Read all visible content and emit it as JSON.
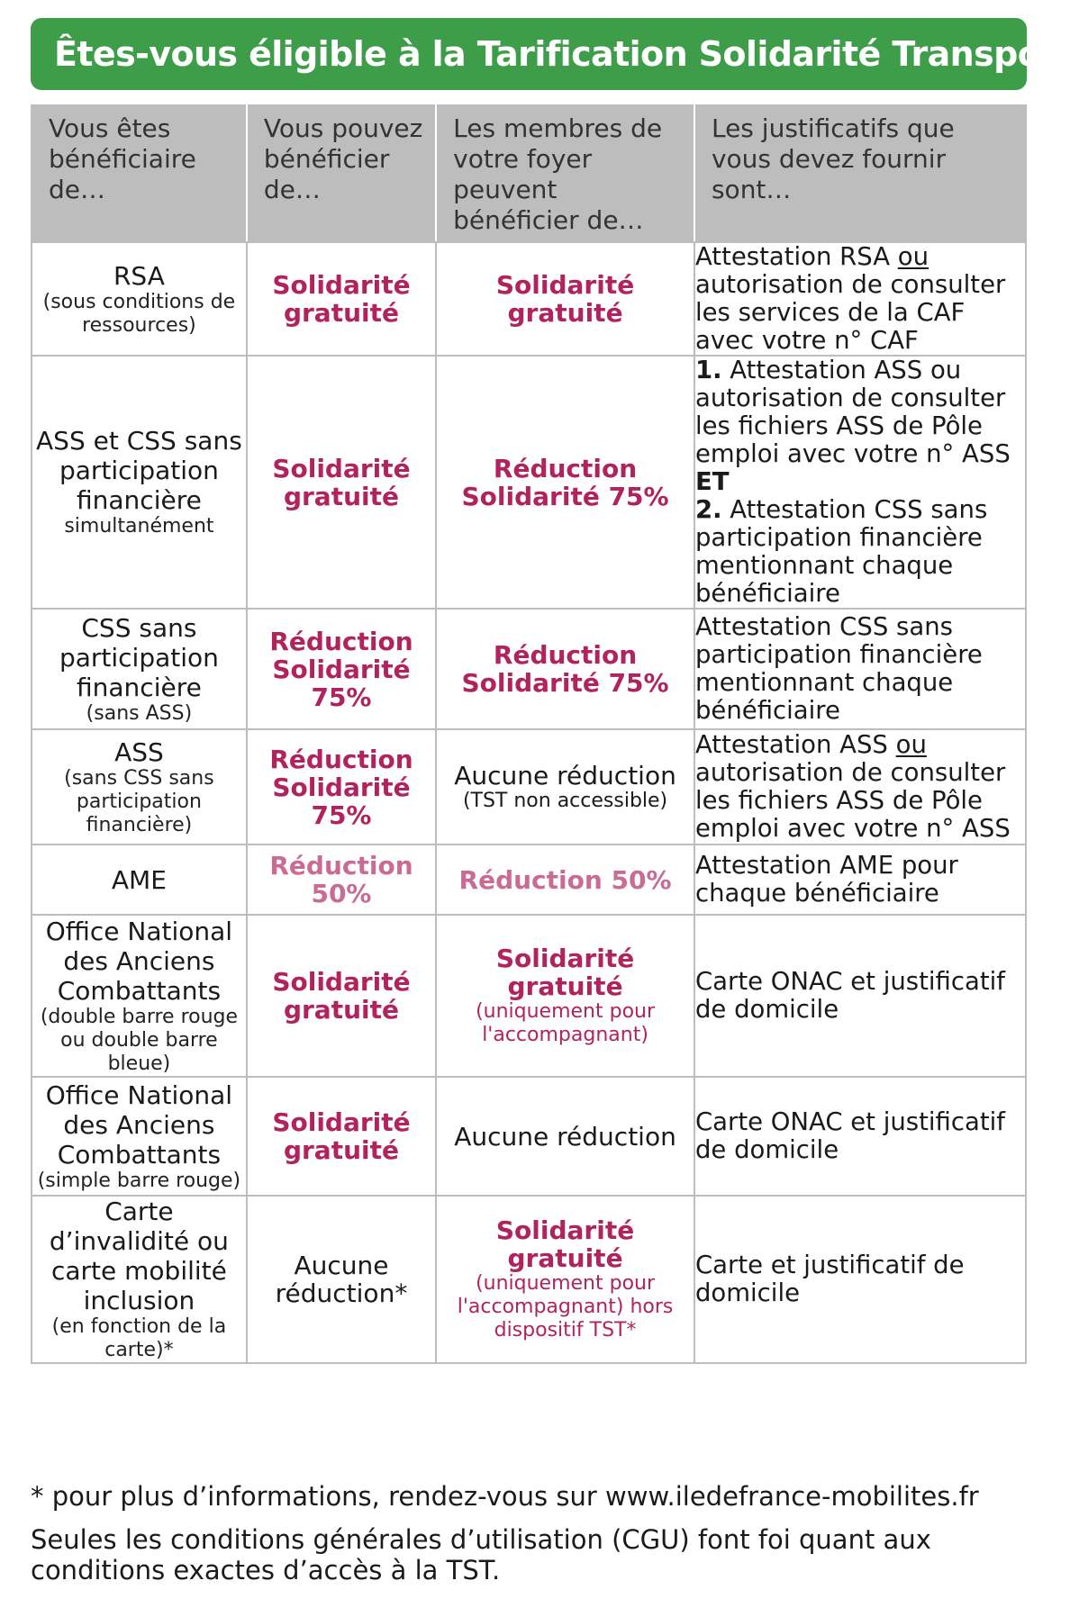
{
  "title": "Êtes-vous éligible à la Tarification Solidarité Transport ?",
  "headers": [
    "Vous êtes bénéficiaire de…",
    "Vous pouvez bénéficier de…",
    "Les membres de votre foyer peuvent bénéficier de…",
    "Les justificatifs que vous devez fournir sont…"
  ],
  "rows": [
    {
      "benef": "RSA",
      "benef_note": "(sous conditions de ressources)",
      "vous": "Solidarité gratuité",
      "foyer": "Solidarité gratuité",
      "docs": {
        "a": "Attestation RSA ",
        "ou": "ou",
        "b": " autorisation de consulter les services de la CAF avec votre n° CAF"
      }
    },
    {
      "benef": "ASS et CSS sans participation financière",
      "benef_note": "simultanément",
      "vous": "Solidarité gratuité",
      "foyer": "Réduction Solidarité 75%",
      "docs": {
        "n1": "1.",
        "d1": " Attestation ASS ou autorisation de consulter les fichiers ASS de Pôle emploi avec votre n° ASS",
        "et": "ET",
        "n2": "2.",
        "d2": " Attestation CSS sans participation financière mentionnant chaque bénéficiaire"
      }
    },
    {
      "benef": "CSS sans participation financière",
      "benef_note": "(sans ASS)",
      "vous": "Réduction Solidarité 75%",
      "foyer": "Réduction Solidarité 75%",
      "docs": "Attestation CSS sans participation financière mentionnant chaque bénéficiaire"
    },
    {
      "benef": "ASS",
      "benef_note": "(sans CSS sans participation financière)",
      "vous": "Réduction Solidarité 75%",
      "foyer": "Aucune réduction",
      "foyer_note": "(TST non accessible)",
      "docs": {
        "a": "Attestation ASS ",
        "ou": "ou",
        "b": " autorisation de consulter les fichiers ASS de Pôle emploi avec votre n° ASS"
      }
    },
    {
      "benef": "AME",
      "vous": "Réduction 50%",
      "foyer": "Réduction 50%",
      "docs": "Attestation AME pour chaque bénéficiaire"
    },
    {
      "benef": "Office National des Anciens Combattants",
      "benef_note": "(double barre rouge ou double barre bleue)",
      "vous": "Solidarité gratuité",
      "foyer": "Solidarité gratuité",
      "foyer_note": "(uniquement pour l'accompagnant)",
      "docs": "Carte ONAC et justificatif de domicile"
    },
    {
      "benef": "Office National des Anciens Combattants",
      "benef_note": "(simple barre rouge)",
      "vous": "Solidarité gratuité",
      "foyer": "Aucune réduction",
      "docs": "Carte ONAC et justificatif de domicile"
    },
    {
      "benef": "Carte d’invalidité ou carte mobilité inclusion",
      "benef_note": "(en fonction de la carte)*",
      "vous": "Aucune réduction*",
      "foyer": "Solidarité gratuité",
      "foyer_note": "(uniquement pour l'accompagnant) hors dispositif TST*",
      "docs": "Carte et justificatif de domicile"
    }
  ],
  "footnote": "* pour plus d’informations, rendez-vous sur www.iledefrance-mobilites.fr",
  "disclaimer": "Seules les conditions générales d’utilisation (CGU) font foi quant aux conditions exactes d’accès à la TST.",
  "colors": {
    "banner_green": "#3e9d48",
    "magenta": "#b0235f",
    "light_magenta": "#c96b95",
    "header_gray": "#bdbdbd"
  }
}
